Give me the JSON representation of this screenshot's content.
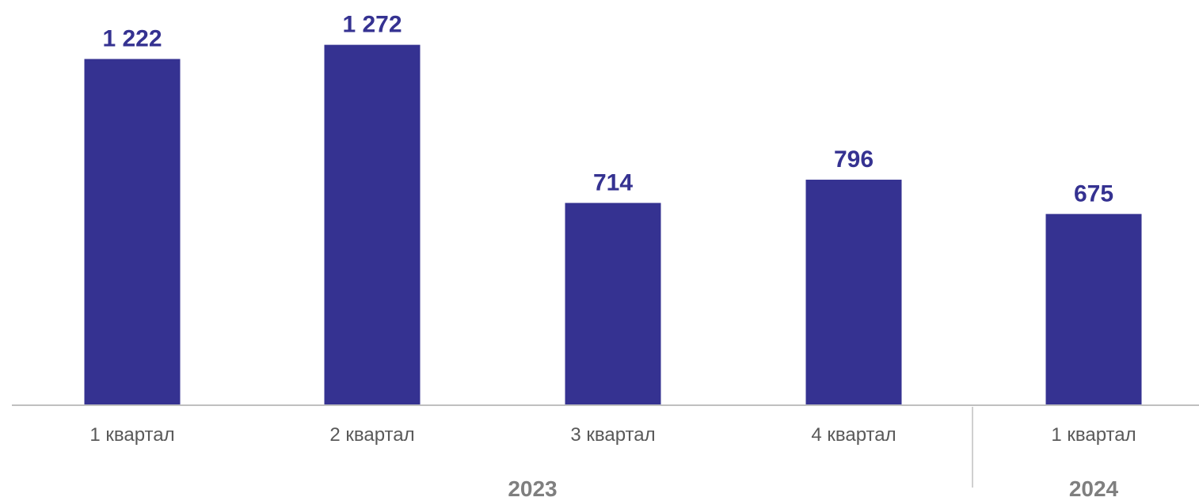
{
  "chart_data": {
    "type": "bar",
    "title": "",
    "xlabel": "",
    "ylabel": "",
    "categories": [
      "1 квартал",
      "2 квартал",
      "3 квартал",
      "4 квартал",
      "1 квартал"
    ],
    "values": [
      1222,
      1272,
      714,
      796,
      675
    ],
    "value_labels": [
      "1 222",
      "1 272",
      "714",
      "796",
      "675"
    ],
    "groups": [
      {
        "label": "2023",
        "categories": [
          0,
          1,
          2,
          3
        ]
      },
      {
        "label": "2024",
        "categories": [
          4
        ]
      }
    ],
    "ylim": [
      0,
      1400
    ],
    "grid": false,
    "legend": "none",
    "colors": {
      "bar": "#353291",
      "value_label": "#353291",
      "category_label": "#595959",
      "group_label": "#7f7f7f",
      "axis": "#bfbfbf",
      "separator": "#d0d0d0"
    }
  }
}
